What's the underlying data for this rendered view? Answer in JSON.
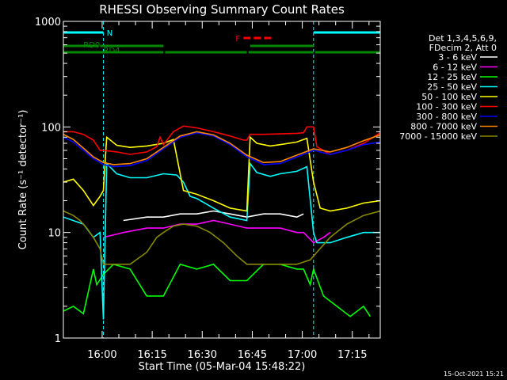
{
  "chart_data": {
    "type": "line",
    "title": "RHESSI Observing Summary Count Rates",
    "xlabel": "Start Time (05-Mar-04 15:48:22)",
    "ylabel": "Count Rate (s⁻¹ detector⁻¹)",
    "y_scale": "log",
    "ylim": [
      1,
      1000
    ],
    "y_ticks": [
      1,
      10,
      100,
      1000
    ],
    "y_tick_labels": [
      "1",
      "10",
      "100",
      "1000"
    ],
    "x_unit": "minutes since 15:48:22",
    "xlim": [
      0,
      95
    ],
    "x_ticks": [
      11.63,
      26.63,
      41.63,
      56.63,
      71.63,
      86.63
    ],
    "x_tick_labels": [
      "16:00",
      "16:15",
      "16:30",
      "16:45",
      "17:00",
      "17:15"
    ],
    "footer": "15-Oct-2021 15:21",
    "legend_header": [
      "Det 1,3,4,5,6,9,",
      "FDecim 2, Att 0"
    ],
    "night_intervals": [
      [
        12,
        75
      ]
    ],
    "annotations": [
      {
        "label": "N",
        "color": "#00ffff",
        "segments": [
          [
            0,
            12
          ],
          [
            75,
            95
          ]
        ],
        "level": "top"
      },
      {
        "label": "RD0",
        "color": "#008800",
        "segments": [
          [
            0,
            10.5
          ]
        ],
        "level": "upper"
      },
      {
        "label": "RD4",
        "color": "#008800",
        "segments": [
          [
            11,
            30
          ],
          [
            56,
            75
          ]
        ],
        "level": "upper"
      },
      {
        "label": "",
        "color": "#008800",
        "segments": [
          [
            0,
            30
          ],
          [
            30.5,
            55
          ],
          [
            55.5,
            75
          ],
          [
            75.5,
            95
          ]
        ],
        "level": "lower"
      },
      {
        "label": "F",
        "color": "#ff0000",
        "segments": [
          [
            54,
            63
          ]
        ],
        "level": "flare",
        "dashed": true
      }
    ],
    "series": [
      {
        "name": "3 - 6 keV",
        "color": "#ffffff",
        "x": [
          18,
          25,
          30,
          35,
          40,
          45,
          50,
          55,
          60,
          65,
          70,
          72
        ],
        "y": [
          13,
          14,
          14,
          15,
          15,
          16,
          15,
          14,
          15,
          15,
          14,
          15
        ]
      },
      {
        "name": "6 - 12 keV",
        "color": "#ff00ff",
        "x": [
          12,
          18,
          25,
          30,
          35,
          40,
          45,
          50,
          55,
          60,
          65,
          70,
          72,
          75,
          78,
          80
        ],
        "y": [
          9,
          10,
          11,
          11,
          12,
          12,
          13,
          12,
          11,
          11,
          11,
          10,
          10,
          8,
          9,
          10
        ]
      },
      {
        "name": "12 - 25 keV",
        "color": "#00ff00",
        "x": [
          0,
          3,
          6,
          9,
          10,
          12,
          15,
          20,
          25,
          30,
          35,
          40,
          45,
          50,
          55,
          60,
          65,
          70,
          72,
          74,
          75,
          78,
          82,
          86,
          90,
          92
        ],
        "y": [
          1.8,
          2.0,
          1.7,
          4.5,
          3.2,
          4,
          5,
          4.5,
          2.5,
          2.5,
          5,
          4.5,
          5,
          3.5,
          3.5,
          5,
          5,
          4.5,
          4.5,
          3.2,
          4.5,
          2.5,
          2,
          1.6,
          2.0,
          1.6
        ]
      },
      {
        "name": "25 - 50 keV",
        "color": "#00ffff",
        "x": [
          0,
          6,
          9,
          11,
          12,
          13,
          16,
          20,
          25,
          30,
          34,
          36,
          38,
          40,
          45,
          50,
          55,
          56,
          58,
          62,
          65,
          70,
          73,
          75,
          76,
          80,
          85,
          90,
          95
        ],
        "y": [
          14,
          12,
          9,
          10,
          1.5,
          45,
          36,
          33,
          33,
          36,
          35,
          30,
          22,
          21,
          17,
          14,
          13,
          45,
          37,
          34,
          36,
          38,
          42,
          10,
          8,
          8,
          9,
          10,
          10
        ]
      },
      {
        "name": "50 - 100 keV",
        "color": "#ffff00",
        "x": [
          0,
          3,
          6,
          9,
          11,
          12,
          13,
          16,
          20,
          25,
          30,
          33,
          36,
          38,
          40,
          45,
          50,
          55,
          56,
          58,
          62,
          65,
          70,
          73,
          75,
          77,
          80,
          85,
          90,
          95
        ],
        "y": [
          30,
          32,
          25,
          18,
          22,
          25,
          80,
          67,
          64,
          66,
          70,
          76,
          25,
          24,
          23,
          20,
          17,
          16,
          80,
          70,
          66,
          68,
          72,
          78,
          30,
          17,
          16,
          17,
          19,
          20
        ]
      },
      {
        "name": "100 - 300 keV",
        "color": "#ff0000",
        "x": [
          0,
          3,
          6,
          9,
          11,
          12,
          16,
          20,
          25,
          28,
          29,
          30,
          33,
          36,
          40,
          45,
          50,
          54,
          55,
          56,
          60,
          65,
          70,
          72,
          73,
          75,
          76,
          80,
          85,
          90,
          95
        ],
        "y": [
          90,
          90,
          85,
          75,
          60,
          60,
          58,
          55,
          58,
          65,
          80,
          68,
          90,
          102,
          98,
          90,
          82,
          75,
          75,
          85,
          85,
          86,
          87,
          88,
          100,
          100,
          65,
          55,
          60,
          70,
          88
        ]
      },
      {
        "name": "300 - 800 keV",
        "color": "#0000ff",
        "x": [
          0,
          3,
          6,
          9,
          12,
          15,
          20,
          25,
          30,
          35,
          40,
          45,
          50,
          55,
          60,
          65,
          70,
          75,
          80,
          85,
          90,
          95
        ],
        "y": [
          80,
          72,
          60,
          50,
          44,
          42,
          43,
          48,
          62,
          80,
          88,
          82,
          68,
          52,
          44,
          45,
          52,
          60,
          55,
          60,
          68,
          72
        ]
      },
      {
        "name": "800 - 7000 keV",
        "color": "#ff8800",
        "x": [
          0,
          3,
          6,
          9,
          12,
          15,
          20,
          25,
          30,
          35,
          40,
          45,
          50,
          55,
          60,
          65,
          70,
          75,
          80,
          85,
          90,
          95
        ],
        "y": [
          85,
          76,
          63,
          52,
          46,
          44,
          45,
          50,
          64,
          82,
          90,
          84,
          70,
          54,
          46,
          47,
          54,
          62,
          58,
          64,
          74,
          84
        ]
      },
      {
        "name": "7000 - 15000 keV",
        "color": "#888800",
        "x": [
          0,
          3,
          5,
          7,
          9,
          11,
          12,
          15,
          20,
          25,
          28,
          30,
          33,
          36,
          40,
          44,
          48,
          52,
          55,
          60,
          65,
          70,
          74,
          76,
          80,
          85,
          90,
          95
        ],
        "y": [
          16,
          14.5,
          13,
          11,
          9,
          7,
          5,
          5,
          5,
          6.5,
          9,
          10,
          11.5,
          12,
          11.5,
          10,
          8,
          6,
          5,
          5,
          5,
          5,
          5.5,
          6.5,
          9,
          12,
          14.5,
          16
        ]
      }
    ]
  }
}
